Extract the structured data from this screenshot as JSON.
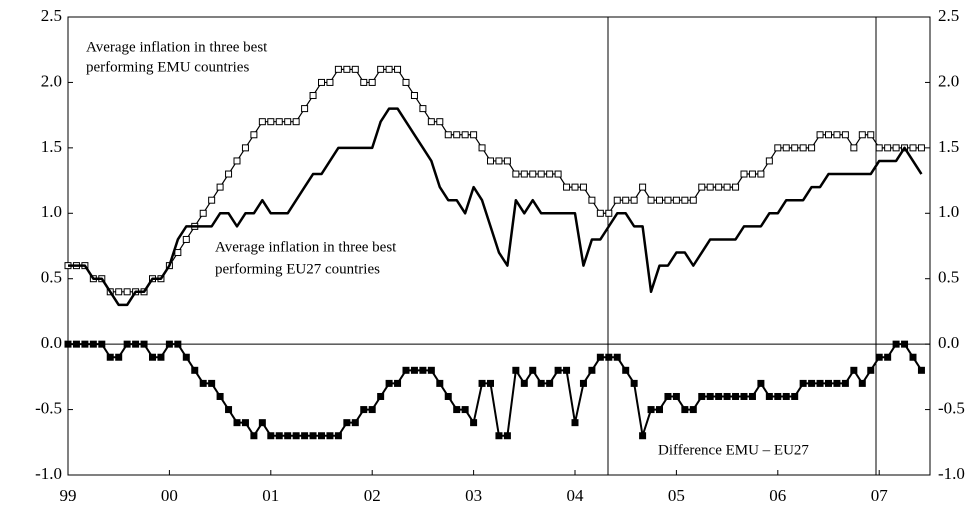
{
  "chart_data": {
    "type": "line",
    "annotations": [
      "Average inflation in three best",
      "performing EMU countries",
      "Average inflation in three best",
      "performing EU27 countries",
      "Difference EMU – EU27"
    ],
    "categories": [
      "99",
      null,
      null,
      null,
      null,
      null,
      null,
      null,
      null,
      null,
      null,
      null,
      "00",
      null,
      null,
      null,
      null,
      null,
      null,
      null,
      null,
      null,
      null,
      null,
      "01",
      null,
      null,
      null,
      null,
      null,
      null,
      null,
      null,
      null,
      null,
      null,
      "02",
      null,
      null,
      null,
      null,
      null,
      null,
      null,
      null,
      null,
      null,
      null,
      "03",
      null,
      null,
      null,
      null,
      null,
      null,
      null,
      null,
      null,
      null,
      null,
      "04",
      null,
      null,
      null,
      null,
      null,
      null,
      null,
      null,
      null,
      null,
      null,
      "05",
      null,
      null,
      null,
      null,
      null,
      null,
      null,
      null,
      null,
      null,
      null,
      "06",
      null,
      null,
      null,
      null,
      null,
      null,
      null,
      null,
      null,
      null,
      null,
      "07",
      null,
      null,
      null,
      null,
      null
    ],
    "series": [
      {
        "name": "Average inflation in three best performing EMU countries",
        "color": "#000000",
        "marker": "open-square",
        "width": 1.2,
        "values": [
          0.6,
          0.6,
          0.6,
          0.5,
          0.5,
          0.4,
          0.4,
          0.4,
          0.4,
          0.4,
          0.5,
          0.5,
          0.6,
          0.7,
          0.8,
          0.9,
          1.0,
          1.1,
          1.2,
          1.3,
          1.4,
          1.5,
          1.6,
          1.7,
          1.7,
          1.7,
          1.7,
          1.7,
          1.8,
          1.9,
          2.0,
          2.0,
          2.1,
          2.1,
          2.1,
          2.0,
          2.0,
          2.1,
          2.1,
          2.1,
          2.0,
          1.9,
          1.8,
          1.7,
          1.7,
          1.6,
          1.6,
          1.6,
          1.6,
          1.5,
          1.4,
          1.4,
          1.4,
          1.3,
          1.3,
          1.3,
          1.3,
          1.3,
          1.3,
          1.2,
          1.2,
          1.2,
          1.1,
          1.0,
          1.0,
          1.1,
          1.1,
          1.1,
          1.2,
          1.1,
          1.1,
          1.1,
          1.1,
          1.1,
          1.1,
          1.2,
          1.2,
          1.2,
          1.2,
          1.2,
          1.3,
          1.3,
          1.3,
          1.4,
          1.5,
          1.5,
          1.5,
          1.5,
          1.5,
          1.6,
          1.6,
          1.6,
          1.6,
          1.5,
          1.6,
          1.6,
          1.5,
          1.5,
          1.5,
          1.5,
          1.5,
          1.5
        ]
      },
      {
        "name": "Average inflation in three best performing EU27 countries",
        "color": "#000000",
        "marker": "none",
        "width": 2.5,
        "values": [
          0.6,
          0.6,
          0.6,
          0.5,
          0.5,
          0.4,
          0.3,
          0.3,
          0.4,
          0.4,
          0.5,
          0.5,
          0.6,
          0.8,
          0.9,
          0.9,
          0.9,
          0.9,
          1.0,
          1.0,
          0.9,
          1.0,
          1.0,
          1.1,
          1.0,
          1.0,
          1.0,
          1.1,
          1.2,
          1.3,
          1.3,
          1.4,
          1.5,
          1.5,
          1.5,
          1.5,
          1.5,
          1.7,
          1.8,
          1.8,
          1.7,
          1.6,
          1.5,
          1.4,
          1.2,
          1.1,
          1.1,
          1.0,
          1.2,
          1.1,
          0.9,
          0.7,
          0.6,
          1.1,
          1.0,
          1.1,
          1.0,
          1.0,
          1.0,
          1.0,
          1.0,
          0.6,
          0.8,
          0.8,
          0.9,
          1.0,
          1.0,
          0.9,
          0.9,
          0.4,
          0.6,
          0.6,
          0.7,
          0.7,
          0.6,
          0.7,
          0.8,
          0.8,
          0.8,
          0.8,
          0.9,
          0.9,
          0.9,
          1.0,
          1.0,
          1.1,
          1.1,
          1.1,
          1.2,
          1.2,
          1.3,
          1.3,
          1.3,
          1.3,
          1.3,
          1.3,
          1.4,
          1.4,
          1.4,
          1.5,
          1.4,
          1.3
        ]
      },
      {
        "name": "Difference EMU – EU27",
        "color": "#000000",
        "marker": "filled-square",
        "width": 2,
        "values": [
          0,
          0,
          0,
          0,
          0,
          -0.1,
          -0.1,
          0,
          0,
          0,
          -0.1,
          -0.1,
          0,
          0,
          -0.1,
          -0.2,
          -0.3,
          -0.3,
          -0.4,
          -0.5,
          -0.6,
          -0.6,
          -0.7,
          -0.6,
          -0.7,
          -0.7,
          -0.7,
          -0.7,
          -0.7,
          -0.7,
          -0.7,
          -0.7,
          -0.7,
          -0.6,
          -0.6,
          -0.5,
          -0.5,
          -0.4,
          -0.3,
          -0.3,
          -0.2,
          -0.2,
          -0.2,
          -0.2,
          -0.3,
          -0.4,
          -0.5,
          -0.5,
          -0.6,
          -0.3,
          -0.3,
          -0.7,
          -0.7,
          -0.2,
          -0.3,
          -0.2,
          -0.3,
          -0.3,
          -0.2,
          -0.2,
          -0.6,
          -0.3,
          -0.2,
          -0.1,
          -0.1,
          -0.1,
          -0.2,
          -0.3,
          -0.7,
          -0.5,
          -0.5,
          -0.4,
          -0.4,
          -0.5,
          -0.5,
          -0.4,
          -0.4,
          -0.4,
          -0.4,
          -0.4,
          -0.4,
          -0.4,
          -0.3,
          -0.4,
          -0.4,
          -0.4,
          -0.4,
          -0.3,
          -0.3,
          -0.3,
          -0.3,
          -0.3,
          -0.3,
          -0.2,
          -0.3,
          -0.2,
          -0.1,
          -0.1,
          0,
          0,
          -0.1,
          -0.2
        ]
      }
    ],
    "ylim": [
      -1,
      2.5
    ],
    "yticks": [
      2.5,
      {
        "value": 2,
        "label": "2.0"
      },
      1.5,
      {
        "value": 1,
        "label": "1.0"
      },
      0.5,
      {
        "value": 0,
        "label": "0.0"
      },
      -0.5,
      {
        "value": -1,
        "label": "-1.0"
      }
    ],
    "y2lim": [
      -1,
      2.5
    ],
    "y2ticks": [
      2.5,
      {
        "value": 2,
        "label": "2.0"
      },
      1.5,
      {
        "value": 1,
        "label": "1.0"
      },
      0.5,
      {
        "value": 0,
        "label": "0.0"
      },
      -0.5,
      {
        "value": -1,
        "label": "-1.0"
      }
    ],
    "grid": false
  }
}
